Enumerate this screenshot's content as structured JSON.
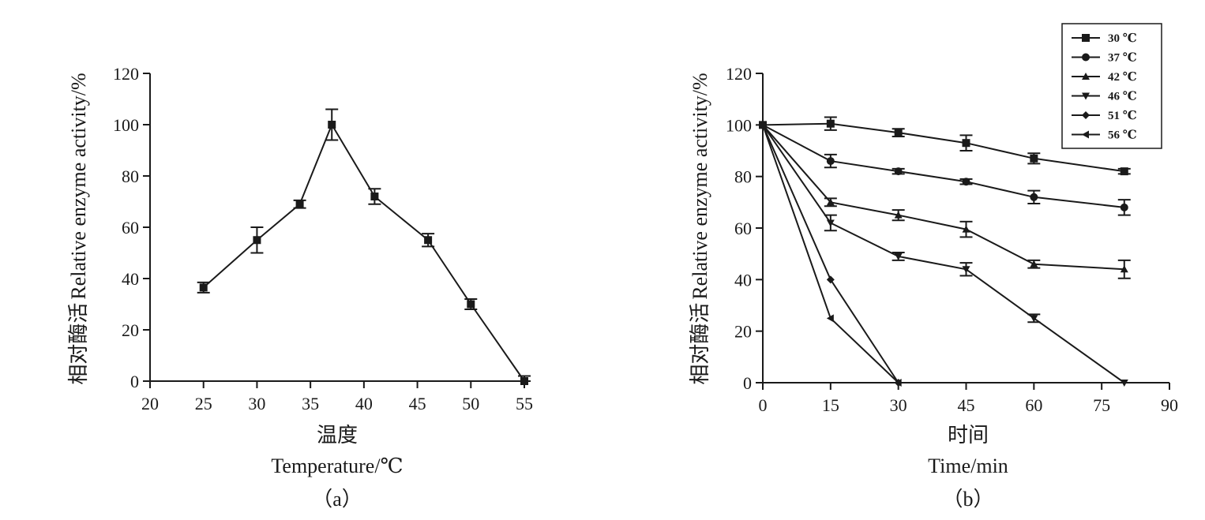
{
  "chart_data": [
    {
      "type": "line",
      "panel_label": "（a）",
      "xlabel_cn": "温度",
      "xlabel": "Temperature/℃",
      "ylabel": "Relative enzyme activity/%",
      "ylabel_cn": "相对酶活",
      "xlim": [
        20,
        55
      ],
      "ylim": [
        0,
        120
      ],
      "xticks": [
        20,
        25,
        30,
        35,
        40,
        45,
        50,
        55
      ],
      "yticks": [
        0,
        20,
        40,
        60,
        80,
        100,
        120
      ],
      "grid": false,
      "series": [
        {
          "marker": "square",
          "x": [
            25,
            30,
            34,
            37,
            41,
            46,
            50,
            55
          ],
          "y": [
            36.5,
            55,
            69,
            100,
            72,
            55,
            30,
            0
          ],
          "error": [
            2,
            5,
            1.5,
            6,
            3,
            2.5,
            2,
            2
          ]
        }
      ]
    },
    {
      "type": "line",
      "panel_label": "（b）",
      "xlabel_cn": "时间",
      "xlabel": "Time/min",
      "ylabel": "Relative enzyme activity/%",
      "ylabel_cn": "相对酶活",
      "xlim": [
        0,
        90
      ],
      "ylim": [
        0,
        120
      ],
      "xticks": [
        0,
        15,
        30,
        45,
        60,
        75,
        90
      ],
      "yticks": [
        0,
        20,
        40,
        60,
        80,
        100,
        120
      ],
      "grid": false,
      "legend_position": "top-right",
      "series": [
        {
          "name": "30 ℃",
          "marker": "square",
          "x": [
            0,
            15,
            30,
            45,
            60,
            80
          ],
          "y": [
            100,
            100.5,
            97,
            93,
            87,
            82
          ],
          "error": [
            0,
            2.5,
            1.5,
            3,
            2,
            1
          ]
        },
        {
          "name": "37 ℃",
          "marker": "circle",
          "x": [
            0,
            15,
            30,
            45,
            60,
            80
          ],
          "y": [
            100,
            86,
            82,
            78,
            72,
            68
          ],
          "error": [
            0,
            2.5,
            1,
            1,
            2.5,
            3
          ]
        },
        {
          "name": "42 ℃",
          "marker": "triangle-up",
          "x": [
            0,
            15,
            30,
            45,
            60,
            80
          ],
          "y": [
            100,
            70,
            65,
            59.5,
            46,
            44
          ],
          "error": [
            0,
            1.5,
            2,
            3,
            1.5,
            3.5
          ]
        },
        {
          "name": "46 ℃",
          "marker": "triangle-down",
          "x": [
            0,
            15,
            30,
            45,
            60,
            80
          ],
          "y": [
            100,
            62,
            49,
            44,
            25,
            0
          ],
          "error": [
            0,
            3,
            1.5,
            2.5,
            1.5,
            0
          ]
        },
        {
          "name": "51 ℃",
          "marker": "diamond",
          "x": [
            0,
            15,
            30
          ],
          "y": [
            100,
            40,
            0
          ],
          "error": [
            0,
            0,
            0
          ]
        },
        {
          "name": "56 ℃",
          "marker": "triangle-left",
          "x": [
            0,
            15,
            30
          ],
          "y": [
            100,
            25,
            0
          ],
          "error": [
            0,
            0,
            0
          ]
        }
      ]
    }
  ]
}
